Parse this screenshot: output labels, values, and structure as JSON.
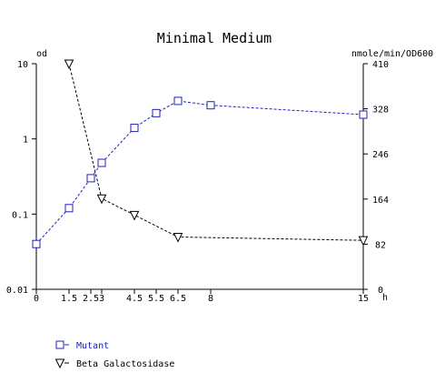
{
  "chart_data": {
    "type": "line",
    "title": "Minimal Medium",
    "x": {
      "unit": "h",
      "range": [
        0,
        15
      ],
      "ticks": [
        0,
        1.5,
        2.5,
        3,
        4.5,
        5.5,
        6.5,
        8,
        15
      ],
      "tick_labels": [
        "0",
        "1.5",
        "2.5",
        "3",
        "4.5",
        "5.5",
        "6.5",
        "8",
        "15"
      ]
    },
    "y_left": {
      "unit": "od",
      "scale": "log",
      "range": [
        0.01,
        10
      ],
      "ticks": [
        0.01,
        0.1,
        1,
        10
      ],
      "tick_labels": [
        "0.01",
        "0.1",
        "1",
        "10"
      ]
    },
    "y_right": {
      "unit": "nmole/min/OD600",
      "scale": "linear",
      "range": [
        0,
        410
      ],
      "ticks": [
        0,
        82,
        164,
        246,
        328,
        410
      ],
      "tick_labels": [
        "0",
        "82",
        "164",
        "246",
        "328",
        "410"
      ]
    },
    "series": [
      {
        "name": "Mutant",
        "axis": "left",
        "marker": "square",
        "color": "#2020c0",
        "line_style": "dashed",
        "x": [
          0,
          1.5,
          2.5,
          3,
          4.5,
          5.5,
          6.5,
          8,
          15
        ],
        "y": [
          0.04,
          0.12,
          0.3,
          0.48,
          1.4,
          2.2,
          3.2,
          2.8,
          2.1
        ]
      },
      {
        "name": "Beta Galactosidase",
        "axis": "right",
        "marker": "triangle-down",
        "color": "#000000",
        "line_style": "dashed",
        "x": [
          1.5,
          3,
          4.5,
          6.5,
          15
        ],
        "y": [
          410,
          165,
          135,
          95,
          89
        ]
      }
    ],
    "grid": false,
    "legend_position": "bottom-left"
  }
}
